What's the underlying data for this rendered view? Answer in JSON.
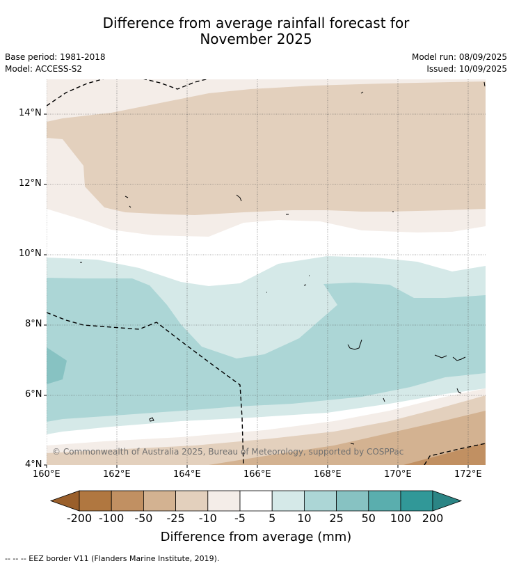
{
  "title_line1": "Difference from average rainfall forecast for",
  "title_line2": "November 2025",
  "base_period": "Base period: 1981-2018",
  "model": "Model: ACCESS-S2",
  "model_run": "Model run: 08/09/2025",
  "issued": "Issued: 10/09/2025",
  "copyright": "© Commonwealth of Australia 2025, Bureau of Meteorology, supported by COSPPac",
  "lat_labels": [
    "14°N",
    "12°N",
    "10°N",
    "8°N",
    "6°N",
    "4°N"
  ],
  "lon_labels": [
    "160°E",
    "162°E",
    "164°E",
    "166°E",
    "168°E",
    "170°E",
    "172°E"
  ],
  "colorbar": {
    "title": "Difference from average (mm)",
    "ticks": [
      "-200",
      "-100",
      "-50",
      "-25",
      "-10",
      "-5",
      "5",
      "10",
      "25",
      "50",
      "100",
      "200"
    ],
    "colors": [
      "#9a5f2b",
      "#b07740",
      "#c19062",
      "#d3b291",
      "#e3d0bd",
      "#f4ede8",
      "#ffffff",
      "#d5e9e8",
      "#acd6d6",
      "#87c2c2",
      "#5aaeae",
      "#319898",
      "#2b8585"
    ]
  },
  "footnote": "--  --  -- EEZ border V11 (Flanders Marine Institute, 2019)."
}
